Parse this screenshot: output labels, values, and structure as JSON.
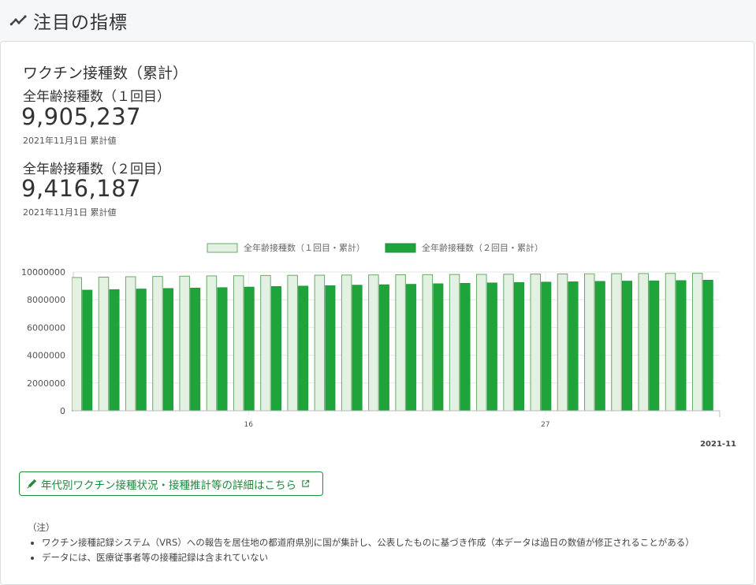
{
  "header": {
    "title": "注目の指標",
    "icon": "trending-up-icon"
  },
  "card": {
    "title": "ワクチン接種数（累計）",
    "stats": [
      {
        "label": "全年齢接種数（１回目）",
        "value": "9,905,237",
        "date": "2021年11月1日 累計値"
      },
      {
        "label": "全年齢接種数（２回目）",
        "value": "9,416,187",
        "date": "2021年11月1日 累計値"
      }
    ]
  },
  "chart_data": {
    "type": "bar",
    "legend": [
      "全年齢接種数（１回目・累計）",
      "全年齢接種数（２回目・累計）"
    ],
    "legend_position": "top-center",
    "y_ticks": [
      "0",
      "2000000",
      "4000000",
      "6000000",
      "8000000",
      "10000000"
    ],
    "ylim": [
      0,
      10000000
    ],
    "x_tick_labels": [
      "16",
      "27"
    ],
    "x_unit_label": "2021-11",
    "grid": true,
    "series": [
      {
        "name": "全年齢接種数（１回目・累計）",
        "color": "#e2f1e2",
        "stroke": "#6aa86a",
        "values": [
          9600000,
          9630000,
          9660000,
          9680000,
          9700000,
          9720000,
          9730000,
          9750000,
          9760000,
          9770000,
          9780000,
          9790000,
          9800000,
          9810000,
          9820000,
          9830000,
          9840000,
          9850000,
          9860000,
          9870000,
          9880000,
          9890000,
          9900000,
          9905237
        ]
      },
      {
        "name": "全年齢接種数（２回目・累計）",
        "color": "#1fa33b",
        "stroke": "#1c8f34",
        "values": [
          8700000,
          8740000,
          8780000,
          8820000,
          8850000,
          8880000,
          8920000,
          8960000,
          8990000,
          9020000,
          9060000,
          9090000,
          9120000,
          9160000,
          9190000,
          9220000,
          9250000,
          9280000,
          9300000,
          9330000,
          9350000,
          9370000,
          9390000,
          9416187
        ]
      }
    ]
  },
  "detail_link": {
    "label": "年代別ワクチン接種状況・接種推計等の詳細はこちら"
  },
  "notes": {
    "heading": "（注）",
    "items": [
      "ワクチン接種記録システム（VRS）への報告を居住地の都道府県別に国が集計し、公表したものに基づき作成（本データは過日の数値が修正されることがある）",
      "データには、医療従事者等の接種記録は含まれていない"
    ]
  }
}
